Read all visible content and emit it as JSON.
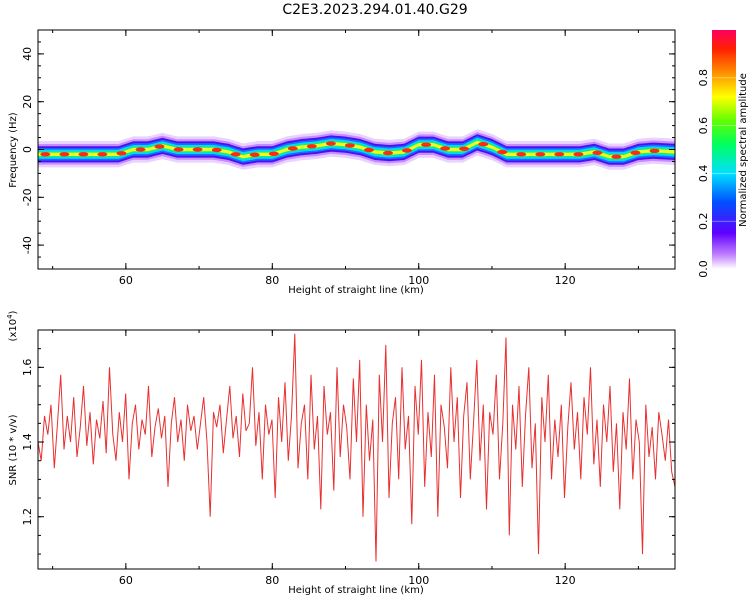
{
  "title": "C2E3.2023.294.01.40.G29",
  "chart_data": [
    {
      "type": "heatmap",
      "xlabel": "Height of straight line (km)",
      "ylabel": "Frequency (Hz)",
      "xlim": [
        48,
        135
      ],
      "ylim": [
        -50,
        50
      ],
      "x_ticks": [
        "60",
        "80",
        "100",
        "120"
      ],
      "y_ticks": [
        "40",
        "20",
        "0",
        "-20",
        "-40"
      ],
      "ridge": {
        "x": [
          48,
          52,
          56,
          59,
          61,
          63,
          65,
          67,
          70,
          72,
          74,
          76,
          78,
          80,
          82,
          84,
          86,
          88,
          90,
          92,
          94,
          96,
          98,
          100,
          102,
          104,
          106,
          108,
          110,
          112,
          114,
          116,
          118,
          120,
          122,
          124,
          126,
          128,
          130,
          132,
          135
        ],
        "y": [
          -2,
          -2,
          -2,
          -2,
          0,
          0,
          1.5,
          0,
          0,
          0,
          -1,
          -3,
          -2,
          -2,
          0,
          1,
          1.5,
          2.5,
          2,
          1,
          -1,
          -1.5,
          -1,
          2,
          2,
          0,
          0,
          3,
          1,
          -2,
          -2,
          -2,
          -2,
          -2,
          -2,
          -1,
          -3,
          -3,
          -1,
          -0.5,
          -1
        ]
      },
      "colorbar": {
        "label": "Normalized spectral amplitude",
        "ticks": [
          "0.0",
          "0.2",
          "0.4",
          "0.6",
          "0.8"
        ],
        "range": [
          0,
          1
        ]
      }
    },
    {
      "type": "line",
      "xlabel": "Height of straight line (km)",
      "ylabel": "SNR (10 * v/v)",
      "multiplier": "(x10",
      "multiplier_exp": "4",
      "multiplier_close": ")",
      "xlim": [
        48,
        135
      ],
      "ylim": [
        1.06,
        1.7
      ],
      "x_ticks": [
        "60",
        "80",
        "100",
        "120"
      ],
      "y_ticks": [
        "1.6",
        "1.4",
        "1.2"
      ],
      "series": [
        {
          "color": "#e83030",
          "x_start": 48,
          "x_end": 135,
          "values": [
            1.4,
            1.35,
            1.47,
            1.42,
            1.5,
            1.33,
            1.45,
            1.58,
            1.38,
            1.47,
            1.4,
            1.52,
            1.36,
            1.44,
            1.55,
            1.39,
            1.48,
            1.34,
            1.46,
            1.41,
            1.51,
            1.37,
            1.6,
            1.42,
            1.35,
            1.48,
            1.4,
            1.53,
            1.3,
            1.45,
            1.5,
            1.38,
            1.46,
            1.42,
            1.55,
            1.36,
            1.44,
            1.49,
            1.41,
            1.47,
            1.28,
            1.45,
            1.52,
            1.4,
            1.46,
            1.35,
            1.5,
            1.43,
            1.47,
            1.38,
            1.45,
            1.52,
            1.4,
            1.2,
            1.48,
            1.44,
            1.5,
            1.37,
            1.46,
            1.55,
            1.41,
            1.47,
            1.36,
            1.53,
            1.43,
            1.45,
            1.6,
            1.39,
            1.48,
            1.3,
            1.5,
            1.42,
            1.46,
            1.25,
            1.52,
            1.4,
            1.56,
            1.35,
            1.47,
            1.69,
            1.33,
            1.45,
            1.5,
            1.3,
            1.58,
            1.38,
            1.47,
            1.22,
            1.55,
            1.42,
            1.48,
            1.27,
            1.6,
            1.36,
            1.5,
            1.44,
            1.3,
            1.57,
            1.4,
            1.62,
            1.2,
            1.5,
            1.35,
            1.46,
            1.08,
            1.58,
            1.4,
            1.66,
            1.25,
            1.45,
            1.52,
            1.3,
            1.6,
            1.38,
            1.47,
            1.18,
            1.55,
            1.42,
            1.62,
            1.28,
            1.48,
            1.36,
            1.58,
            1.2,
            1.5,
            1.44,
            1.33,
            1.6,
            1.4,
            1.52,
            1.25,
            1.47,
            1.56,
            1.3,
            1.45,
            1.62,
            1.35,
            1.5,
            1.22,
            1.48,
            1.42,
            1.58,
            1.3,
            1.45,
            1.68,
            1.15,
            1.5,
            1.38,
            1.55,
            1.28,
            1.47,
            1.6,
            1.33,
            1.45,
            1.1,
            1.52,
            1.4,
            1.58,
            1.3,
            1.46,
            1.36,
            1.5,
            1.25,
            1.44,
            1.56,
            1.38,
            1.48,
            1.3,
            1.52,
            1.42,
            1.6,
            1.34,
            1.46,
            1.28,
            1.5,
            1.4,
            1.55,
            1.32,
            1.45,
            1.22,
            1.48,
            1.38,
            1.57,
            1.3,
            1.46,
            1.4,
            1.1,
            1.5,
            1.36,
            1.44,
            1.3,
            1.48,
            1.42,
            1.35,
            1.46,
            1.32,
            1.28
          ]
        }
      ]
    }
  ]
}
